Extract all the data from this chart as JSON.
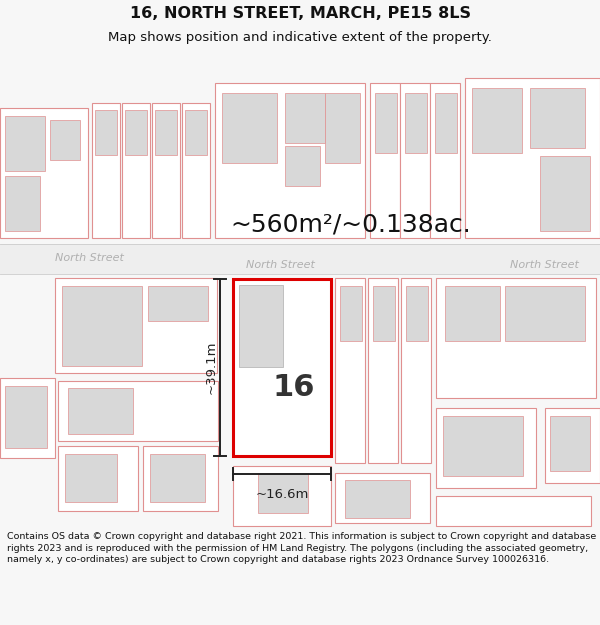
{
  "title": "16, NORTH STREET, MARCH, PE15 8LS",
  "subtitle": "Map shows position and indicative extent of the property.",
  "area_text": "~560m²/~0.138ac.",
  "width_label": "~16.6m",
  "height_label": "~39.1m",
  "number_label": "16",
  "footer_text": "Contains OS data © Crown copyright and database right 2021. This information is subject to Crown copyright and database rights 2023 and is reproduced with the permission of HM Land Registry. The polygons (including the associated geometry, namely x, y co-ordinates) are subject to Crown copyright and database rights 2023 Ordnance Survey 100026316.",
  "bg_color": "#f7f7f7",
  "map_bg": "#ffffff",
  "plot_fill": "#ffffff",
  "plot_edge": "#dd0000",
  "bld_fill": "#d8d8d8",
  "bld_edge": "#e09090",
  "road_fill": "#f0f0f0",
  "street_color": "#b0b0b0",
  "dim_color": "#222222",
  "title_color": "#111111",
  "footer_color": "#111111"
}
